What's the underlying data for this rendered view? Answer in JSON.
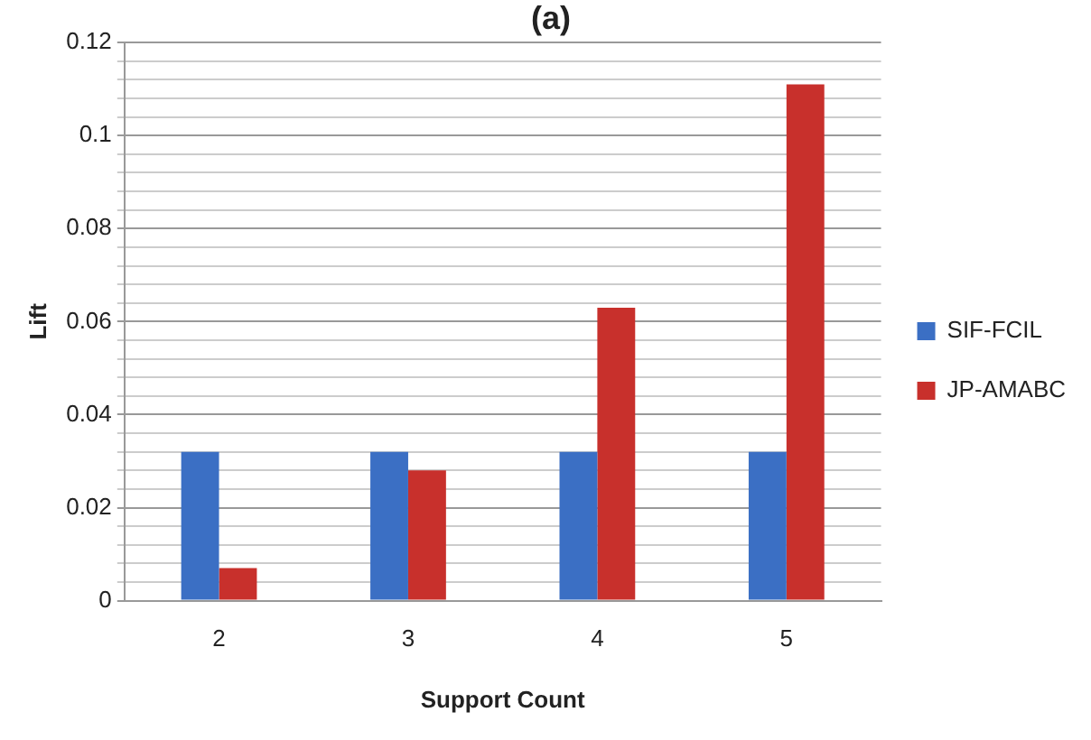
{
  "chart_data": {
    "type": "bar",
    "title": "(a)",
    "xlabel": "Support Count",
    "ylabel": "Lift",
    "categories": [
      "2",
      "3",
      "4",
      "5"
    ],
    "series": [
      {
        "name": "SIF-FCIL",
        "color": "#3b6fc4",
        "values": [
          0.032,
          0.032,
          0.032,
          0.032
        ]
      },
      {
        "name": "JP-AMABC",
        "color": "#c8302c",
        "values": [
          0.007,
          0.028,
          0.063,
          0.111
        ]
      }
    ],
    "ylim": [
      0,
      0.12
    ],
    "yticks": [
      0,
      {
        "value": 0.004,
        "label": null
      },
      {
        "value": 0.008,
        "label": null
      },
      {
        "value": 0.012,
        "label": null
      },
      {
        "value": 0.016,
        "label": null
      },
      0.02,
      {
        "value": 0.024,
        "label": null
      },
      {
        "value": 0.028,
        "label": null
      },
      {
        "value": 0.032,
        "label": null
      },
      {
        "value": 0.036,
        "label": null
      },
      0.04,
      {
        "value": 0.044,
        "label": null
      },
      {
        "value": 0.048,
        "label": null
      },
      {
        "value": 0.052,
        "label": null
      },
      {
        "value": 0.056,
        "label": null
      },
      0.06,
      {
        "value": 0.064,
        "label": null
      },
      {
        "value": 0.068,
        "label": null
      },
      {
        "value": 0.072,
        "label": null
      },
      {
        "value": 0.076,
        "label": null
      },
      0.08,
      {
        "value": 0.084,
        "label": null
      },
      {
        "value": 0.088,
        "label": null
      },
      {
        "value": 0.092,
        "label": null
      },
      {
        "value": 0.096,
        "label": null
      },
      0.1,
      {
        "value": 0.104,
        "label": null
      },
      {
        "value": 0.108,
        "label": null
      },
      {
        "value": 0.112,
        "label": null
      },
      {
        "value": 0.116,
        "label": null
      },
      0.12
    ],
    "grid": "y",
    "legend": "right"
  }
}
